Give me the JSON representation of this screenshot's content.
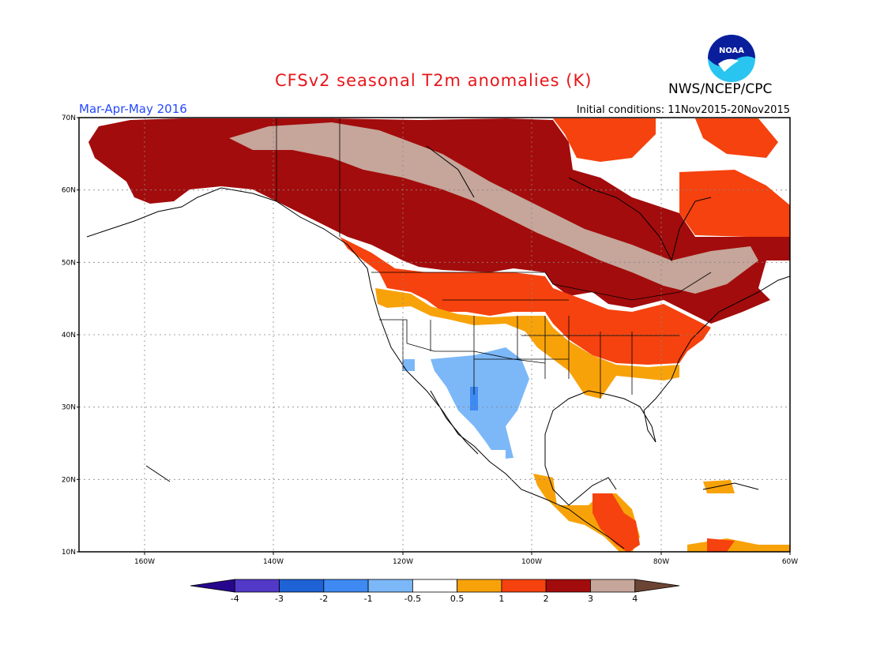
{
  "title": "CFSv2 seasonal T2m anomalies (K)",
  "org": "NWS/NCEP/CPC",
  "logo_text": "NOAA",
  "season": "Mar-Apr-May 2016",
  "initial_conditions": "Initial conditions: 11Nov2015-20Nov2015",
  "lat_labels": [
    "70N",
    "60N",
    "50N",
    "40N",
    "30N",
    "20N",
    "10N"
  ],
  "lon_labels": [
    "160W",
    "140W",
    "120W",
    "100W",
    "80W",
    "60W"
  ],
  "colorbar": {
    "colors": [
      "#26078c",
      "#5239c8",
      "#1e62d6",
      "#3e8af2",
      "#7cb8f8",
      "#ffffff",
      "#f8a20a",
      "#f5420e",
      "#a30c0c",
      "#c6a59a",
      "#6c4433"
    ],
    "labels": [
      "-4",
      "-3",
      "-2",
      "-1",
      "-0.5",
      "0.5",
      "1",
      "2",
      "3",
      "4"
    ]
  },
  "colors": {
    "title": "#e8161b",
    "season": "#2448ff",
    "dark_red": "#a30c0c",
    "red": "#f5420e",
    "orange": "#f8a20a",
    "tan": "#c6a59a",
    "light_blue": "#7cb8f8",
    "blue": "#3e8af2"
  }
}
